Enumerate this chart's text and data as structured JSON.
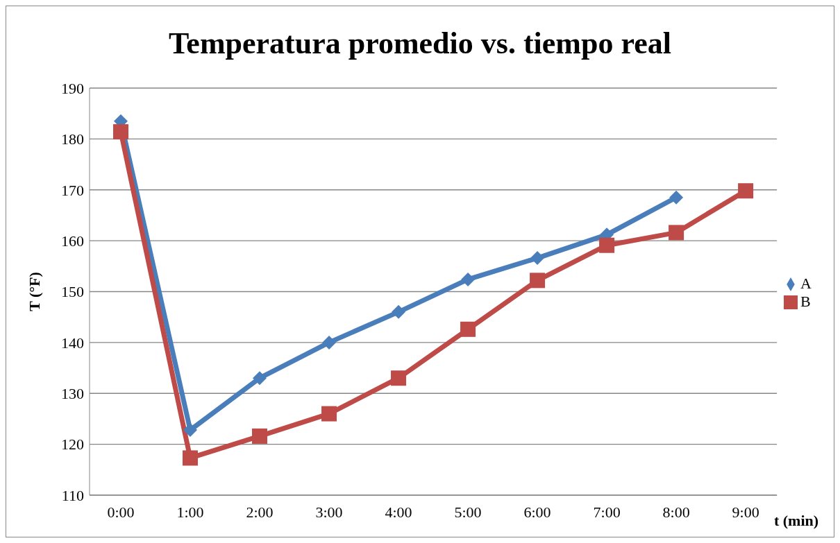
{
  "chart_data": {
    "type": "line",
    "title": "Temperatura promedio vs. tiempo real",
    "xlabel": "t (min)",
    "ylabel": "T (°F)",
    "categories": [
      "0:00",
      "1:00",
      "2:00",
      "3:00",
      "4:00",
      "5:00",
      "6:00",
      "7:00",
      "8:00",
      "9:00"
    ],
    "series": [
      {
        "name": "A",
        "color": "#4a7ebb",
        "marker": "diamond",
        "values": [
          183.5,
          122.8,
          133,
          140,
          146,
          152.4,
          156.6,
          161.2,
          168.5,
          null
        ]
      },
      {
        "name": "B",
        "color": "#be4b48",
        "marker": "square",
        "values": [
          181.4,
          117.3,
          121.6,
          126,
          133,
          142.6,
          152.2,
          159.1,
          161.6,
          169.8
        ]
      }
    ],
    "ylim": [
      110,
      190
    ],
    "yticks": [
      110,
      120,
      130,
      140,
      150,
      160,
      170,
      180,
      190
    ],
    "grid": "y",
    "legend": "right",
    "line_style": "solid"
  }
}
